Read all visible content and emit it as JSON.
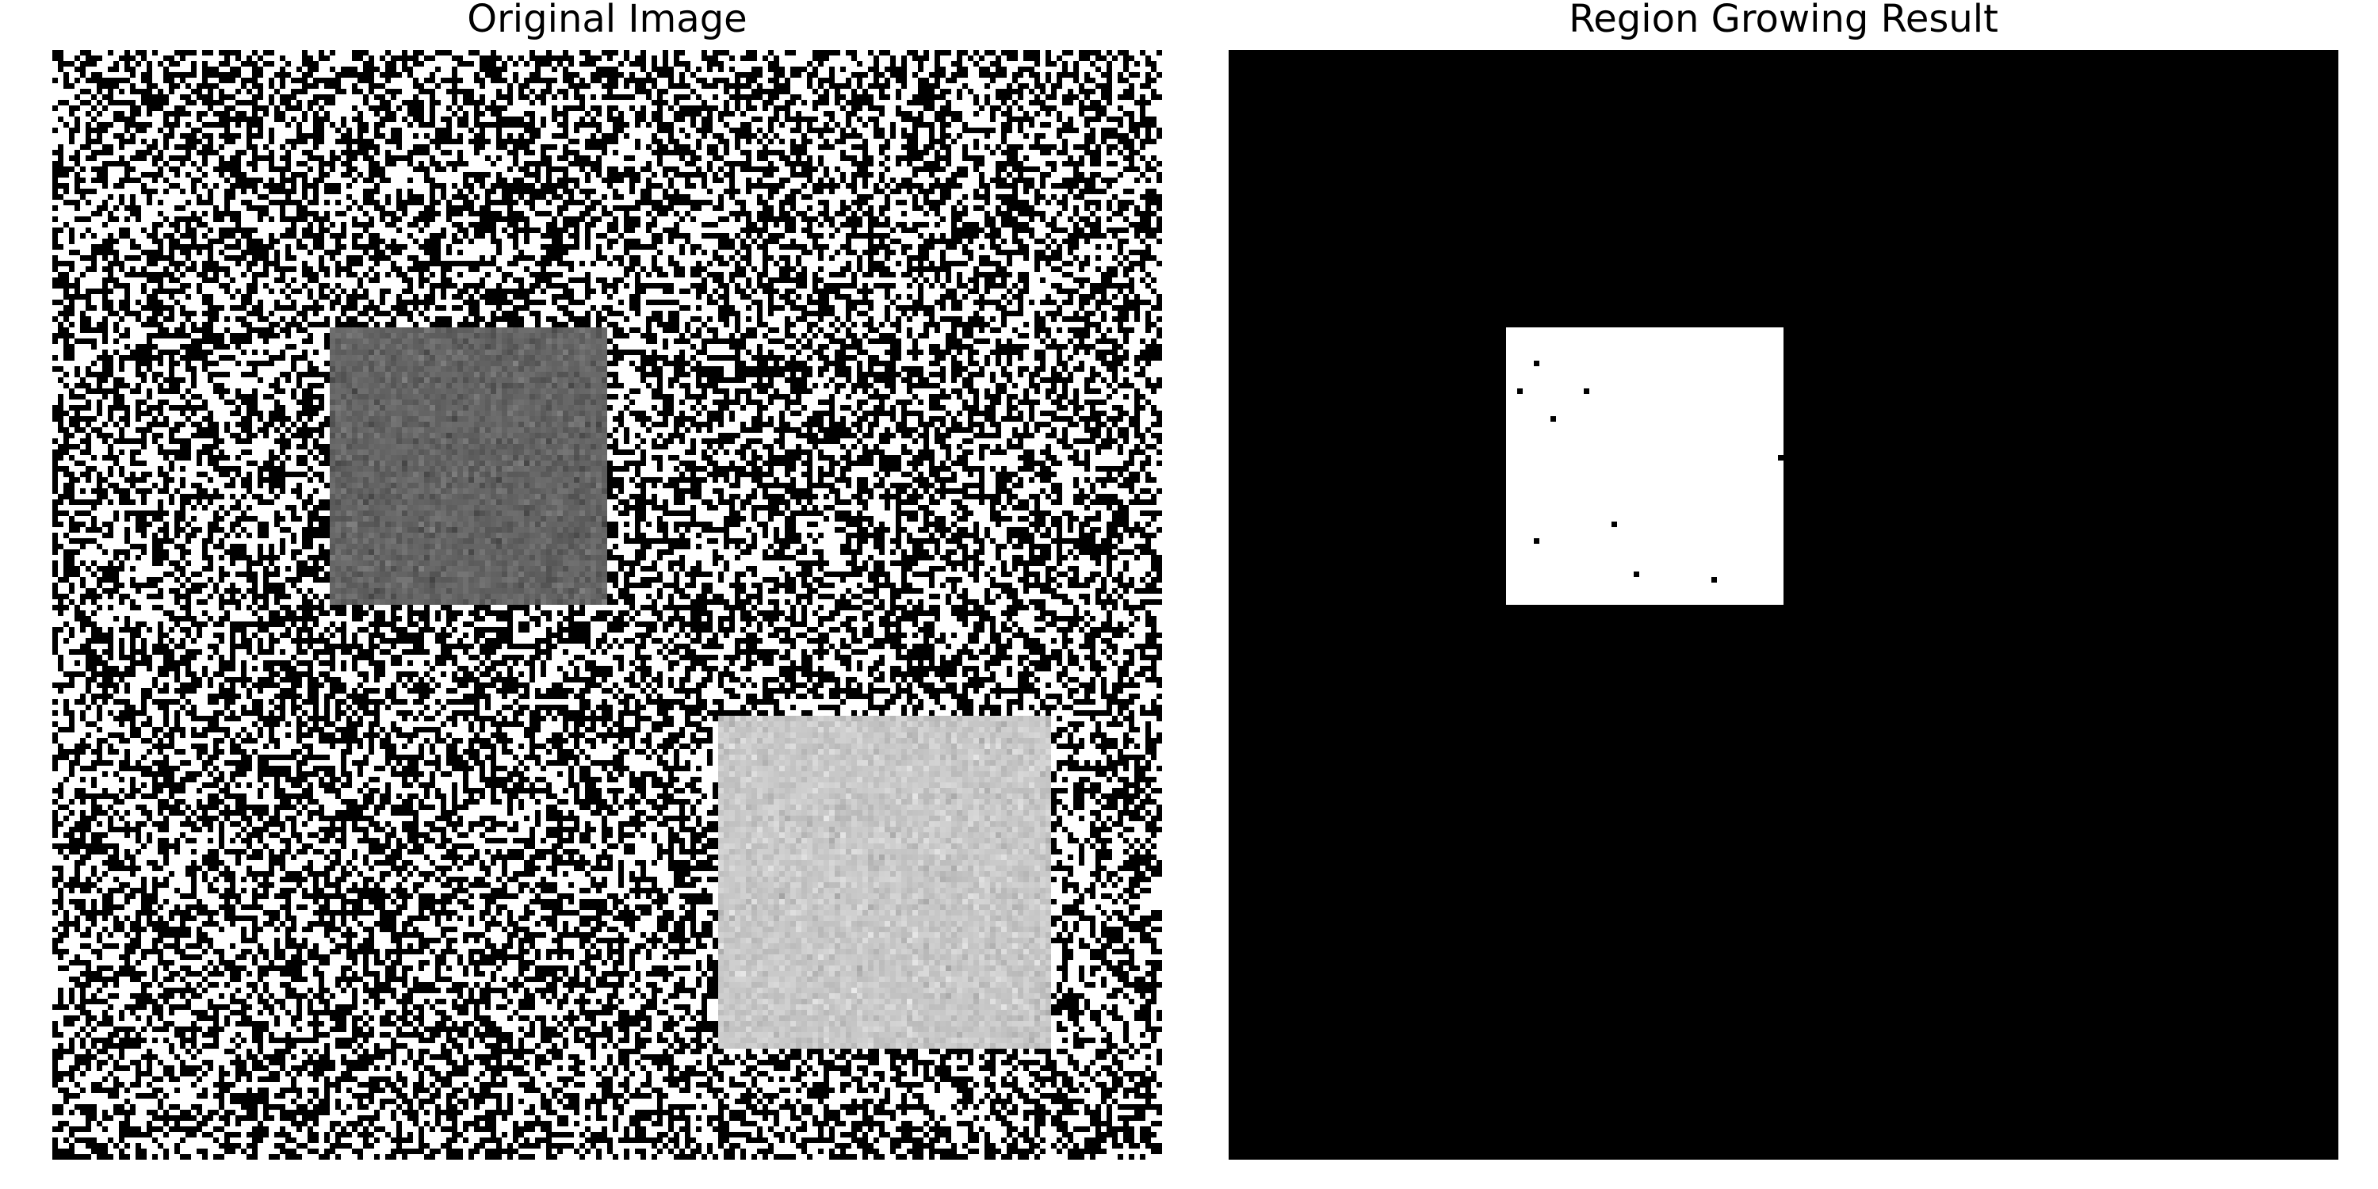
{
  "panels": {
    "left": {
      "title": "Original Image"
    },
    "right": {
      "title": "Region Growing Result"
    }
  },
  "image": {
    "grid_size": 200,
    "noise_values": [
      0,
      255
    ],
    "squares": [
      {
        "name": "dark-square",
        "row_start": 50,
        "row_end": 100,
        "col_start": 50,
        "col_end": 100,
        "mean_gray": 100,
        "noise_sigma": 10
      },
      {
        "name": "light-square",
        "row_start": 120,
        "row_end": 180,
        "col_start": 120,
        "col_end": 180,
        "mean_gray": 200,
        "noise_sigma": 10
      }
    ]
  },
  "result": {
    "background": "#000000",
    "region_color": "#ffffff",
    "region": {
      "row_start": 50,
      "row_end": 100,
      "col_start": 50,
      "col_end": 100
    },
    "holes": [
      [
        56,
        55
      ],
      [
        61,
        52
      ],
      [
        61,
        64
      ],
      [
        66,
        58
      ],
      [
        73,
        99
      ],
      [
        88,
        55
      ],
      [
        85,
        69
      ],
      [
        94,
        73
      ],
      [
        95,
        87
      ]
    ]
  }
}
